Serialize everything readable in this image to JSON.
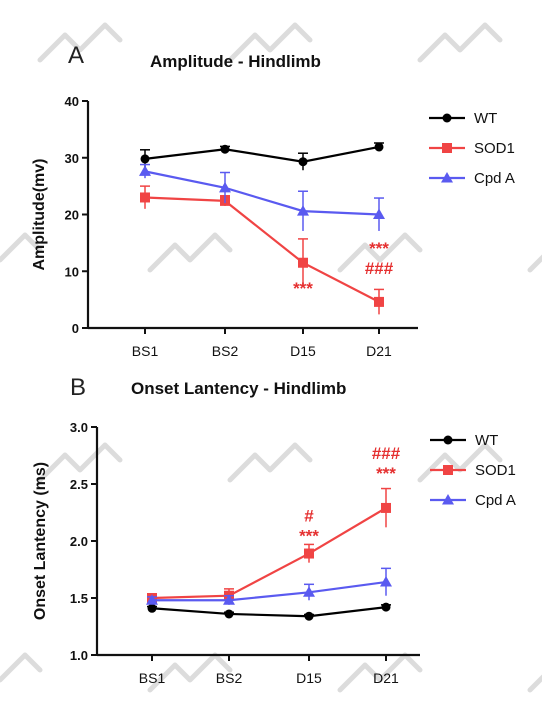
{
  "colors": {
    "wt": "#000000",
    "sod1": "#f04444",
    "cpd_a": "#5a5af0",
    "sig": "#e53030",
    "watermark": "#dcdcdc"
  },
  "chart_data": [
    {
      "panel_label": "A",
      "type": "line",
      "title": "Amplitude - Hindlimb",
      "xlabel": "",
      "ylabel": "Amplitude(mv)",
      "categories": [
        "BS1",
        "BS2",
        "D15",
        "D21"
      ],
      "ylim": [
        0,
        40
      ],
      "yticks": [
        0,
        10,
        20,
        30,
        40
      ],
      "ytick_labels": [
        "0",
        "10",
        "20",
        "30",
        "40"
      ],
      "grid": false,
      "legend_position": "top-right",
      "series": [
        {
          "name": "WT",
          "marker": "circle",
          "values": [
            29.8,
            31.5,
            29.3,
            31.9
          ],
          "err": [
            1.6,
            0.5,
            1.5,
            0.7
          ]
        },
        {
          "name": "SOD1",
          "marker": "square",
          "values": [
            23.0,
            22.4,
            11.5,
            4.6
          ],
          "err": [
            2.0,
            0.9,
            4.2,
            2.2
          ]
        },
        {
          "name": "Cpd A",
          "marker": "triangle",
          "values": [
            27.6,
            24.7,
            20.6,
            20.0
          ],
          "err": [
            1.2,
            2.7,
            3.5,
            2.9
          ]
        }
      ],
      "annotations": [
        {
          "category": "D15",
          "value": 6.0,
          "lines": [
            "***"
          ]
        },
        {
          "category": "D21",
          "value": 13.0,
          "lines": [
            "***",
            "###"
          ]
        }
      ]
    },
    {
      "panel_label": "B",
      "type": "line",
      "title": "Onset Lantency - Hindlimb",
      "xlabel": "",
      "ylabel": "Onset Lantency (ms)",
      "categories": [
        "BS1",
        "BS2",
        "D15",
        "D21"
      ],
      "ylim": [
        1.0,
        3.0
      ],
      "yticks": [
        1.0,
        1.5,
        2.0,
        2.5,
        3.0
      ],
      "ytick_labels": [
        "1.0",
        "1.5",
        "2.0",
        "2.5",
        "3.0"
      ],
      "grid": false,
      "legend_position": "top-right",
      "series": [
        {
          "name": "WT",
          "marker": "circle",
          "values": [
            1.41,
            1.36,
            1.34,
            1.42
          ],
          "err": [
            0.015,
            0.015,
            0.015,
            0.02
          ]
        },
        {
          "name": "SOD1",
          "marker": "square",
          "values": [
            1.5,
            1.52,
            1.89,
            2.29
          ],
          "err": [
            0.03,
            0.06,
            0.08,
            0.17
          ]
        },
        {
          "name": "Cpd A",
          "marker": "triangle",
          "values": [
            1.48,
            1.48,
            1.55,
            1.64
          ],
          "err": [
            0.03,
            0.04,
            0.07,
            0.12
          ]
        }
      ],
      "annotations": [
        {
          "category": "D15",
          "value": 2.17,
          "lines": [
            "#",
            "***"
          ]
        },
        {
          "category": "D21",
          "value": 2.72,
          "lines": [
            "###",
            "***"
          ]
        }
      ]
    }
  ]
}
